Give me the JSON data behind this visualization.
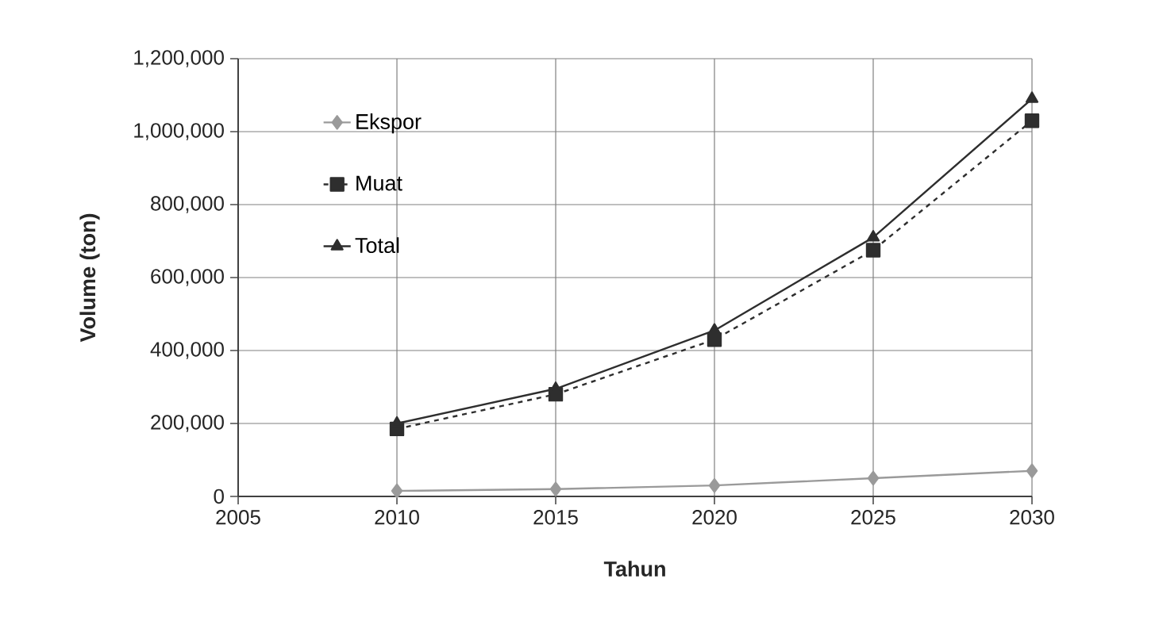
{
  "chart_data": {
    "type": "line",
    "xlabel": "Tahun",
    "ylabel": "Volume (ton)",
    "x": [
      2010,
      2015,
      2020,
      2025,
      2030
    ],
    "series": [
      {
        "name": "Ekspor",
        "color": "#9a9a9a",
        "marker": "diamond",
        "line_style": "solid",
        "values": [
          15000,
          20000,
          30000,
          50000,
          70000
        ]
      },
      {
        "name": "Muat",
        "color": "#2e2e2e",
        "marker": "square",
        "line_style": "dashed",
        "values": [
          185000,
          280000,
          430000,
          675000,
          1030000
        ]
      },
      {
        "name": "Total",
        "color": "#2e2e2e",
        "marker": "triangle",
        "line_style": "solid",
        "values": [
          200000,
          295000,
          455000,
          710000,
          1090000
        ]
      }
    ],
    "xlim": [
      2005,
      2030
    ],
    "xticks": [
      2005,
      2010,
      2015,
      2020,
      2025,
      2030
    ],
    "ylim": [
      0,
      1200000
    ],
    "yticks": [
      0,
      {
        "value": 200000,
        "label": "200,000"
      },
      {
        "value": 400000,
        "label": "400,000"
      },
      {
        "value": 600000,
        "label": "600,000"
      },
      {
        "value": 800000,
        "label": "800,000"
      },
      {
        "value": 1000000,
        "label": "1,000,000"
      },
      {
        "value": 1200000,
        "label": "1,200,000"
      }
    ],
    "grid": true,
    "legend": "top left"
  }
}
